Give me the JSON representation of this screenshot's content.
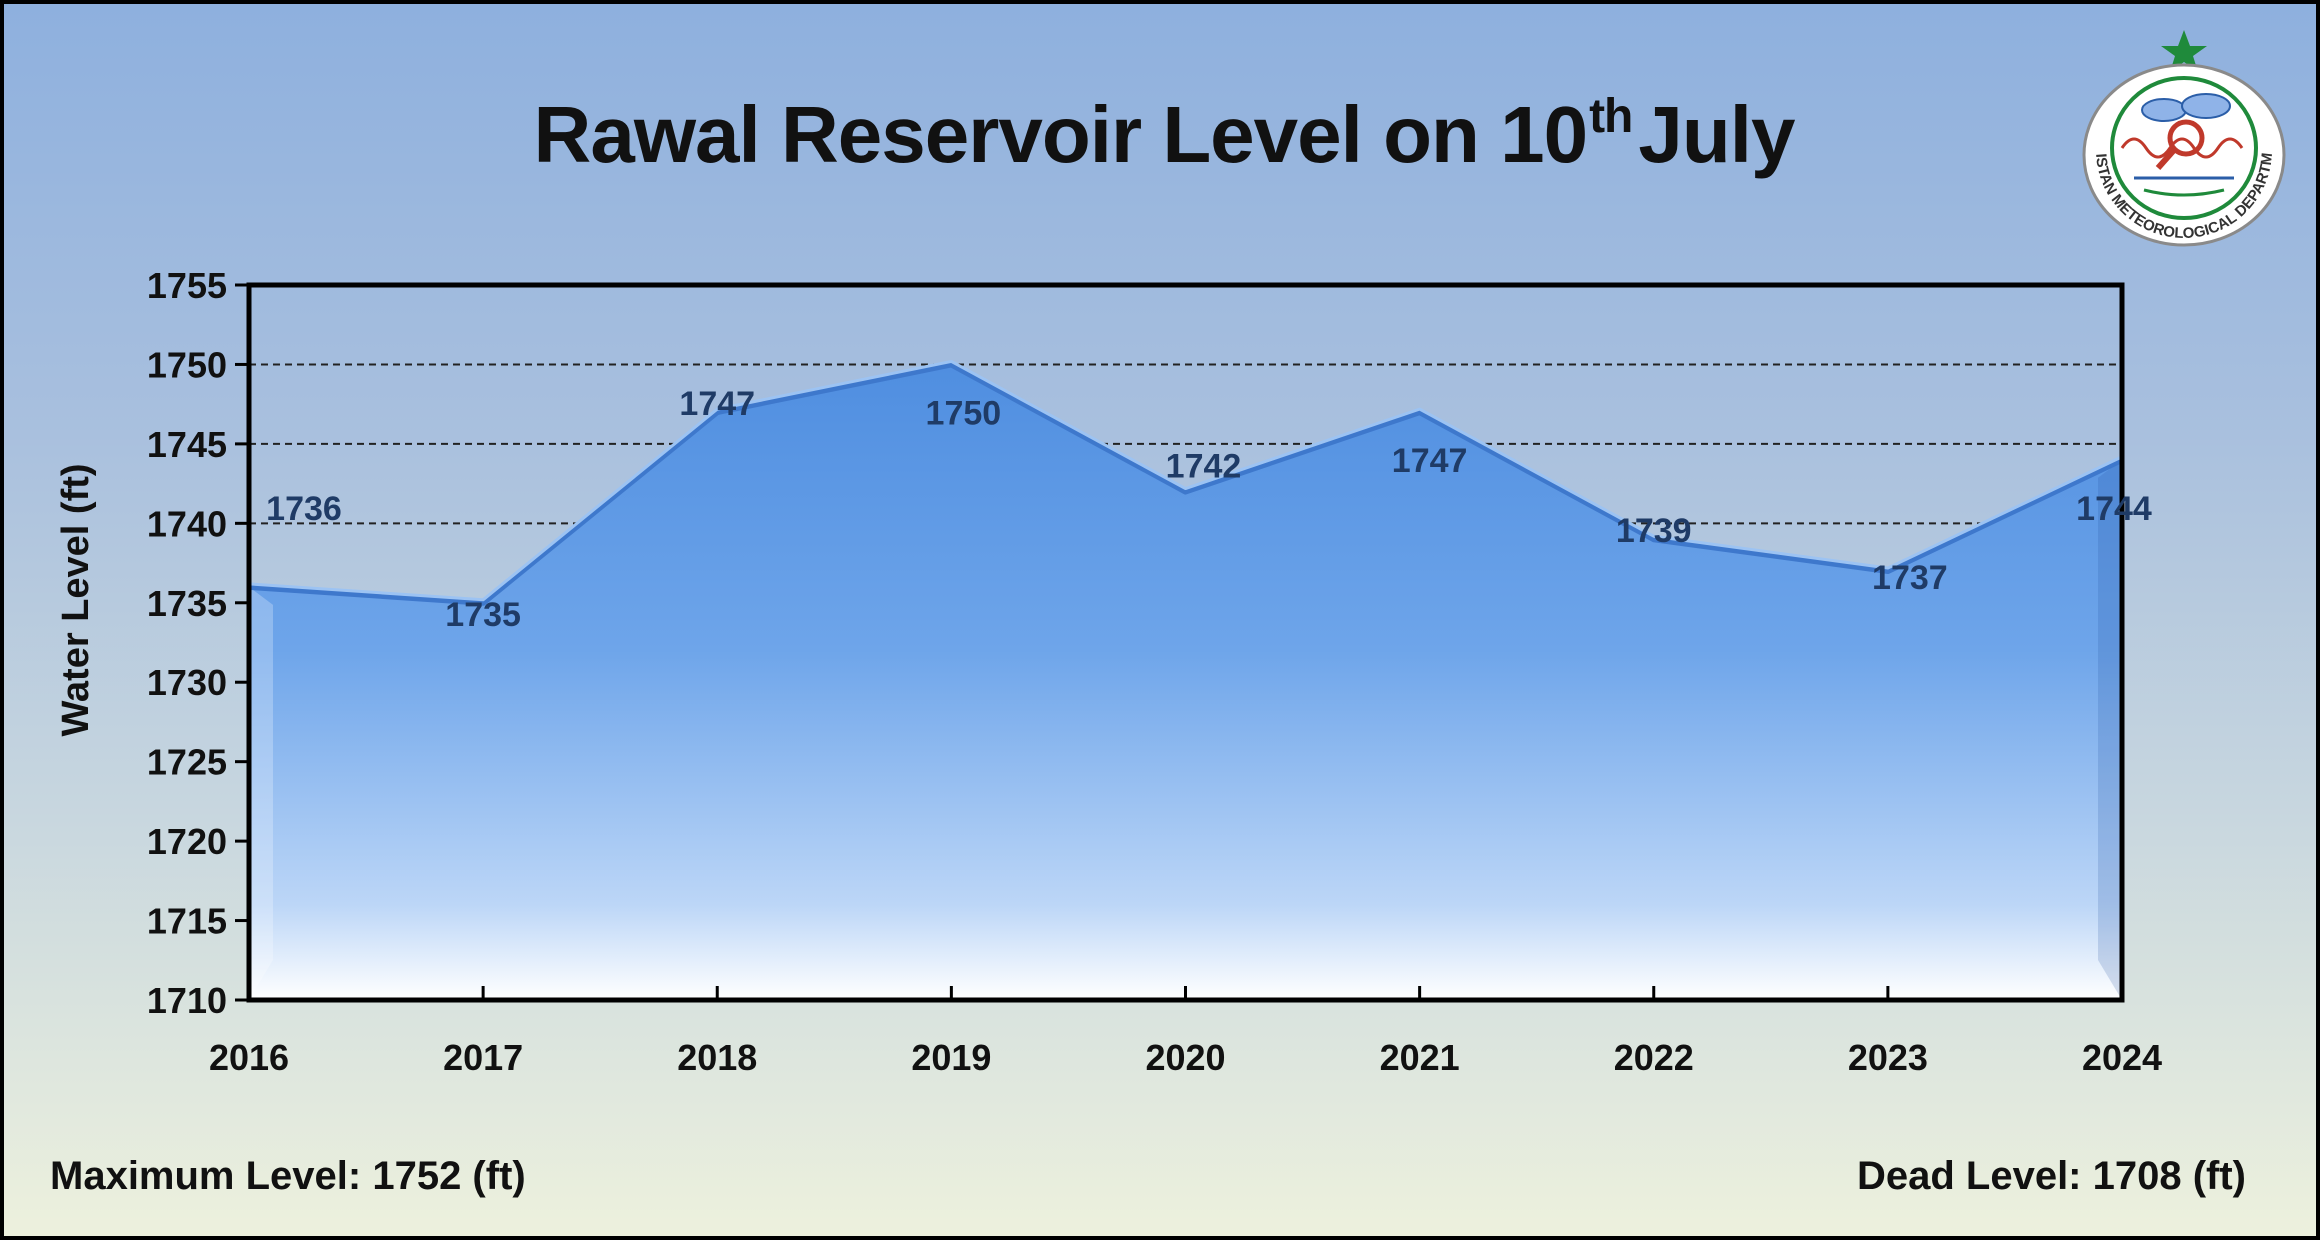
{
  "title_main": "Rawal Reservoir Level on 10",
  "title_sup": "th",
  "title_end": "July",
  "logo": {
    "text": "PAKISTAN METEOROLOGICAL DEPARTMENT",
    "accent": "#1f8a3b"
  },
  "footer": {
    "max_level": "Maximum Level: 1752 (ft)",
    "dead_level": "Dead Level: 1708 (ft)"
  },
  "chart_data": {
    "type": "area",
    "x": [
      "2016",
      "2017",
      "2018",
      "2019",
      "2020",
      "2021",
      "2022",
      "2023",
      "2024"
    ],
    "values": [
      1736,
      1735,
      1747,
      1750,
      1742,
      1747,
      1739,
      1737,
      1744
    ],
    "data_labels": [
      "1736",
      "1735",
      "1747",
      "1750",
      "1742",
      "1747",
      "1739",
      "1737",
      "1744"
    ],
    "ylabel": "Water Level (ft)",
    "ylim": [
      1710,
      1755
    ],
    "yticks": [
      1710,
      1715,
      1720,
      1725,
      1730,
      1735,
      1740,
      1745,
      1750,
      1755
    ],
    "dashed_gridlines": [
      1740,
      1745,
      1750
    ],
    "legend": "none",
    "fill_color": "#5b97e2"
  }
}
